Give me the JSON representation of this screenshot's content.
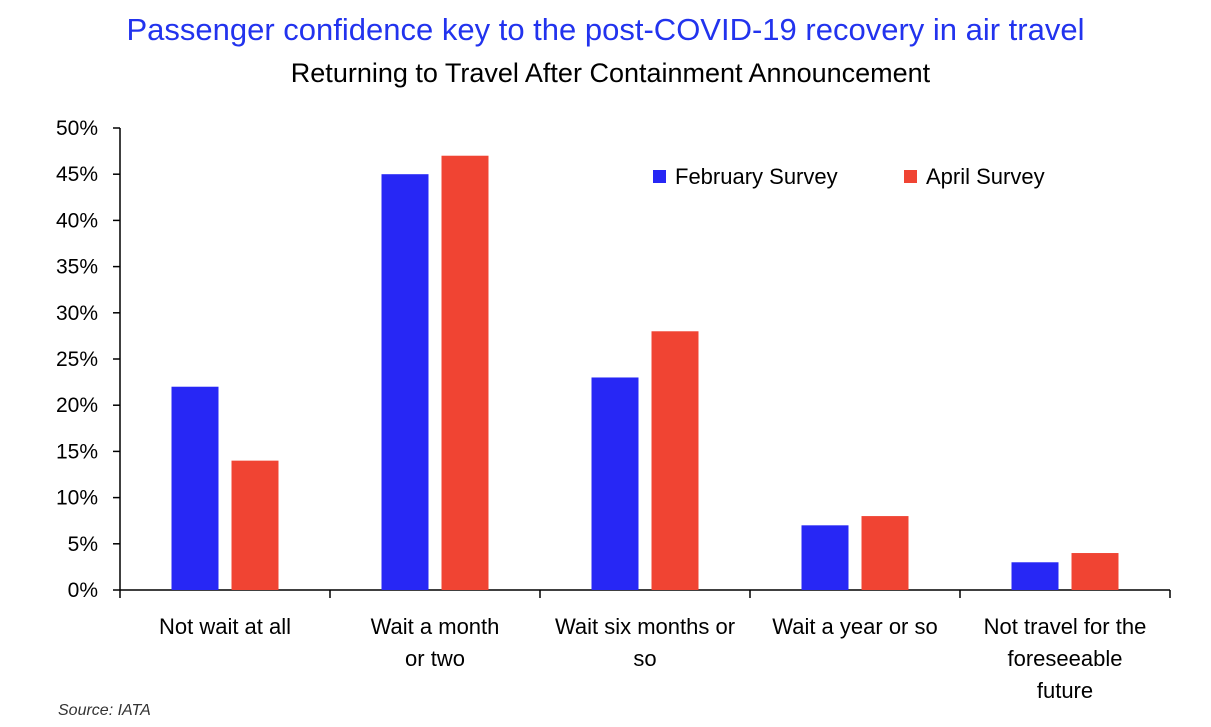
{
  "title": "Passenger confidence key to the post-COVID-19 recovery in air travel",
  "source": "Source: IATA",
  "colors": {
    "title": "#2233ee",
    "february": "#2727f5",
    "april": "#f04433"
  },
  "chart_data": {
    "type": "bar",
    "title": "Returning to Travel After Containment Announcement",
    "xlabel": "",
    "ylabel": "",
    "ylim": [
      0,
      0.5
    ],
    "yticks": [
      "0%",
      "5%",
      "10%",
      "15%",
      "20%",
      "25%",
      "30%",
      "35%",
      "40%",
      "45%",
      "50%"
    ],
    "grid": false,
    "legend_position": "top-right",
    "categories": [
      [
        "Not wait at all"
      ],
      [
        "Wait a month",
        "or two"
      ],
      [
        "Wait six months or",
        "so"
      ],
      [
        "Wait a year or so"
      ],
      [
        "Not travel for the",
        "foreseeable",
        "future"
      ]
    ],
    "series": [
      {
        "name": "February Survey",
        "color": "#2727f5",
        "values": [
          0.22,
          0.45,
          0.23,
          0.07,
          0.03
        ]
      },
      {
        "name": "April Survey",
        "color": "#f04433",
        "values": [
          0.14,
          0.47,
          0.28,
          0.08,
          0.04
        ]
      }
    ]
  }
}
